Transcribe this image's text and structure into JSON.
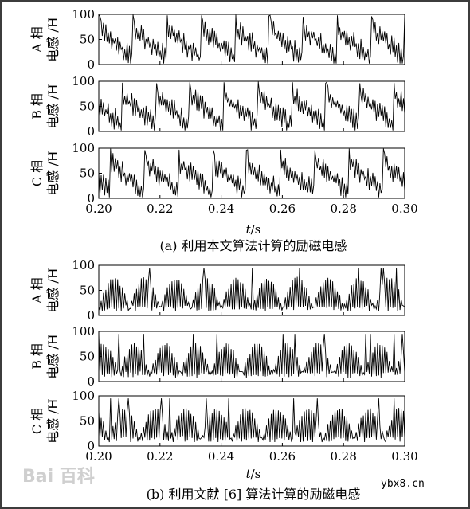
{
  "figure": {
    "caption_a": "(a) 利用本文算法计算的励磁电感",
    "caption_b": "(b) 利用文献 [6] 算法计算的励磁电感",
    "xlabel_t": "t",
    "xlabel_unit": "/s",
    "watermark": "Bai 百科",
    "site": "ybx8.cn"
  },
  "chart_data": [
    {
      "type": "line",
      "panel": "a-A",
      "ylabel_phase": "A 相",
      "ylabel_unit": "电感 /H",
      "ylim": [
        0,
        100
      ],
      "xlim": [
        0.2,
        0.3
      ],
      "yticks": [
        "0",
        "50",
        "100"
      ],
      "series": [
        {
          "values": []
        }
      ]
    },
    {
      "type": "line",
      "panel": "a-B",
      "ylabel_phase": "B 相",
      "ylabel_unit": "电感 /H",
      "ylim": [
        0,
        100
      ],
      "xlim": [
        0.2,
        0.3
      ],
      "yticks": [
        "0",
        "50",
        "100"
      ],
      "series": [
        {
          "values": []
        }
      ]
    },
    {
      "type": "line",
      "panel": "a-C",
      "ylabel_phase": "C 相",
      "ylabel_unit": "电感 /H",
      "ylim": [
        0,
        100
      ],
      "xlim": [
        0.2,
        0.3
      ],
      "yticks": [
        "0",
        "50",
        "100"
      ],
      "xticks": [
        "0.20",
        "0.22",
        "0.24",
        "0.26",
        "0.28",
        "0.30"
      ],
      "series": [
        {
          "values": []
        }
      ]
    },
    {
      "type": "line",
      "panel": "b-A",
      "ylabel_phase": "A 相",
      "ylabel_unit": "电感 /H",
      "ylim": [
        0,
        100
      ],
      "xlim": [
        0.2,
        0.3
      ],
      "yticks": [
        "0",
        "50",
        "100"
      ],
      "series": [
        {
          "values": []
        }
      ]
    },
    {
      "type": "line",
      "panel": "b-B",
      "ylabel_phase": "B 相",
      "ylabel_unit": "电感 /H",
      "ylim": [
        0,
        100
      ],
      "xlim": [
        0.2,
        0.3
      ],
      "yticks": [
        "0",
        "50",
        "100"
      ],
      "series": [
        {
          "values": []
        }
      ]
    },
    {
      "type": "line",
      "panel": "b-C",
      "ylabel_phase": "C 相",
      "ylabel_unit": "电感 /H",
      "ylim": [
        0,
        100
      ],
      "xlim": [
        0.2,
        0.3
      ],
      "yticks": [
        "0",
        "50",
        "100"
      ],
      "xticks": [
        "0.20",
        "0.22",
        "0.24",
        "0.26",
        "0.28",
        "0.30"
      ],
      "series": [
        {
          "values": []
        }
      ]
    }
  ]
}
